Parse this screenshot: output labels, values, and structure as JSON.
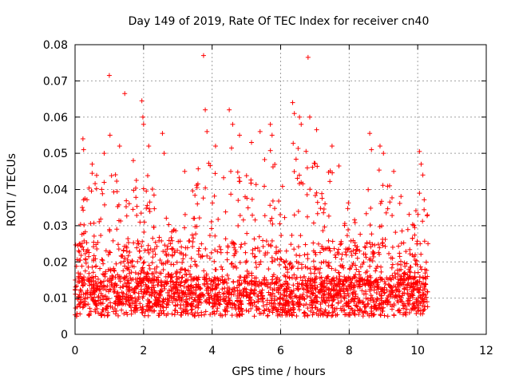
{
  "chart_data": {
    "type": "scatter",
    "title": "Day 149 of 2019, Rate Of TEC Index for receiver cn40",
    "xlabel": "GPS time / hours",
    "ylabel": "ROTI / TECUs",
    "xlim": [
      0,
      12
    ],
    "ylim": [
      0,
      0.08
    ],
    "x_ticks": [
      0,
      2,
      4,
      6,
      8,
      10,
      12
    ],
    "y_ticks": [
      0,
      0.01,
      0.02,
      0.03,
      0.04,
      0.05,
      0.06,
      0.07,
      0.08
    ],
    "x_tick_labels": [
      "0",
      "2",
      "4",
      "6",
      "8",
      "10",
      "12"
    ],
    "y_tick_labels": [
      "0",
      "0.01",
      "0.02",
      "0.03",
      "0.04",
      "0.05",
      "0.06",
      "0.07",
      "0.08"
    ],
    "grid": true,
    "marker": "+",
    "color": "#ff0000",
    "series": [
      {
        "name": "ROTI",
        "x_range": [
          0,
          10.3
        ],
        "baseline_mean": 0.011,
        "notable_points": [
          {
            "x": 0.23,
            "y": 0.054
          },
          {
            "x": 0.25,
            "y": 0.051
          },
          {
            "x": 0.5,
            "y": 0.047
          },
          {
            "x": 0.85,
            "y": 0.05
          },
          {
            "x": 1.0,
            "y": 0.0715
          },
          {
            "x": 1.02,
            "y": 0.055
          },
          {
            "x": 1.3,
            "y": 0.052
          },
          {
            "x": 1.45,
            "y": 0.0665
          },
          {
            "x": 1.7,
            "y": 0.048
          },
          {
            "x": 1.95,
            "y": 0.0645
          },
          {
            "x": 1.98,
            "y": 0.06
          },
          {
            "x": 2.0,
            "y": 0.058
          },
          {
            "x": 2.15,
            "y": 0.052
          },
          {
            "x": 2.55,
            "y": 0.0555
          },
          {
            "x": 2.6,
            "y": 0.05
          },
          {
            "x": 3.2,
            "y": 0.045
          },
          {
            "x": 3.75,
            "y": 0.077
          },
          {
            "x": 3.8,
            "y": 0.062
          },
          {
            "x": 3.85,
            "y": 0.056
          },
          {
            "x": 4.1,
            "y": 0.052
          },
          {
            "x": 4.5,
            "y": 0.062
          },
          {
            "x": 4.6,
            "y": 0.058
          },
          {
            "x": 4.8,
            "y": 0.055
          },
          {
            "x": 5.15,
            "y": 0.053
          },
          {
            "x": 5.4,
            "y": 0.056
          },
          {
            "x": 5.7,
            "y": 0.058
          },
          {
            "x": 5.75,
            "y": 0.055
          },
          {
            "x": 6.35,
            "y": 0.064
          },
          {
            "x": 6.4,
            "y": 0.061
          },
          {
            "x": 6.55,
            "y": 0.06
          },
          {
            "x": 6.6,
            "y": 0.058
          },
          {
            "x": 6.8,
            "y": 0.0765
          },
          {
            "x": 6.85,
            "y": 0.06
          },
          {
            "x": 7.05,
            "y": 0.0565
          },
          {
            "x": 7.5,
            "y": 0.052
          },
          {
            "x": 7.7,
            "y": 0.0465
          },
          {
            "x": 8.6,
            "y": 0.0555
          },
          {
            "x": 8.65,
            "y": 0.051
          },
          {
            "x": 8.9,
            "y": 0.052
          },
          {
            "x": 9.0,
            "y": 0.05
          },
          {
            "x": 9.3,
            "y": 0.045
          },
          {
            "x": 10.05,
            "y": 0.0505
          },
          {
            "x": 10.1,
            "y": 0.047
          },
          {
            "x": 10.15,
            "y": 0.044
          }
        ],
        "envelope": [
          {
            "x": 0.0,
            "y": 0.02
          },
          {
            "x": 0.3,
            "y": 0.042
          },
          {
            "x": 0.6,
            "y": 0.046
          },
          {
            "x": 0.9,
            "y": 0.043
          },
          {
            "x": 1.2,
            "y": 0.046
          },
          {
            "x": 1.5,
            "y": 0.042
          },
          {
            "x": 1.8,
            "y": 0.046
          },
          {
            "x": 2.1,
            "y": 0.045
          },
          {
            "x": 2.4,
            "y": 0.04
          },
          {
            "x": 2.7,
            "y": 0.034
          },
          {
            "x": 3.0,
            "y": 0.031
          },
          {
            "x": 3.3,
            "y": 0.036
          },
          {
            "x": 3.6,
            "y": 0.046
          },
          {
            "x": 3.9,
            "y": 0.05
          },
          {
            "x": 4.2,
            "y": 0.048
          },
          {
            "x": 4.5,
            "y": 0.052
          },
          {
            "x": 4.8,
            "y": 0.05
          },
          {
            "x": 5.1,
            "y": 0.046
          },
          {
            "x": 5.4,
            "y": 0.05
          },
          {
            "x": 5.7,
            "y": 0.052
          },
          {
            "x": 6.0,
            "y": 0.045
          },
          {
            "x": 6.3,
            "y": 0.054
          },
          {
            "x": 6.6,
            "y": 0.052
          },
          {
            "x": 6.9,
            "y": 0.051
          },
          {
            "x": 7.2,
            "y": 0.044
          },
          {
            "x": 7.5,
            "y": 0.046
          },
          {
            "x": 7.8,
            "y": 0.04
          },
          {
            "x": 8.1,
            "y": 0.036
          },
          {
            "x": 8.4,
            "y": 0.034
          },
          {
            "x": 8.7,
            "y": 0.046
          },
          {
            "x": 9.0,
            "y": 0.046
          },
          {
            "x": 9.3,
            "y": 0.043
          },
          {
            "x": 9.6,
            "y": 0.037
          },
          {
            "x": 9.9,
            "y": 0.033
          },
          {
            "x": 10.2,
            "y": 0.045
          },
          {
            "x": 10.3,
            "y": 0.032
          }
        ]
      }
    ]
  }
}
